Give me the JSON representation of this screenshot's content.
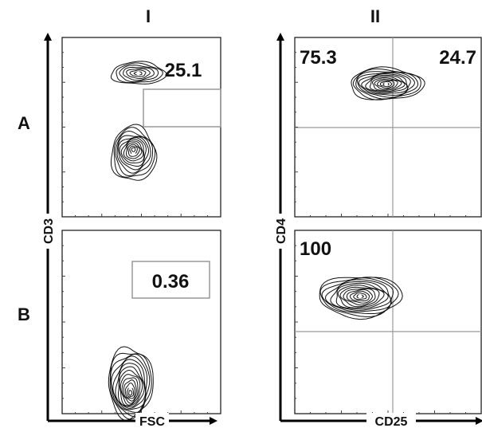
{
  "columns": [
    "I",
    "II"
  ],
  "rows": [
    "A",
    "B"
  ],
  "axes": {
    "col1_y": "CD3",
    "col1_x": "FSC",
    "col2_y": "CD4",
    "col2_x": "CD25"
  },
  "chart_data": [
    {
      "type": "contour",
      "panel": "A-I",
      "xlabel": "FSC",
      "ylabel": "CD3",
      "gates": [
        {
          "label": "25.1",
          "value": 25.1
        }
      ],
      "populations": [
        {
          "x": 0.48,
          "y": 0.8,
          "kind": "gated"
        },
        {
          "x": 0.45,
          "y": 0.35,
          "kind": "main"
        }
      ]
    },
    {
      "type": "contour",
      "panel": "A-II",
      "xlabel": "CD25",
      "ylabel": "CD4",
      "quadrants": [
        {
          "position": "upper-left",
          "label": "75.3",
          "value": 75.3
        },
        {
          "position": "upper-right",
          "label": "24.7",
          "value": 24.7
        }
      ],
      "populations": [
        {
          "x": 0.49,
          "y": 0.74,
          "kind": "main"
        }
      ]
    },
    {
      "type": "contour",
      "panel": "B-I",
      "xlabel": "FSC",
      "ylabel": "CD3",
      "gates": [
        {
          "label": "0.36",
          "value": 0.36
        }
      ],
      "populations": [
        {
          "x": 0.43,
          "y": 0.17,
          "kind": "main"
        }
      ]
    },
    {
      "type": "contour",
      "panel": "B-II",
      "xlabel": "CD25",
      "ylabel": "CD4",
      "quadrants": [
        {
          "position": "upper-left",
          "label": "100",
          "value": 100
        }
      ],
      "populations": [
        {
          "x": 0.35,
          "y": 0.64,
          "kind": "main"
        }
      ]
    }
  ]
}
